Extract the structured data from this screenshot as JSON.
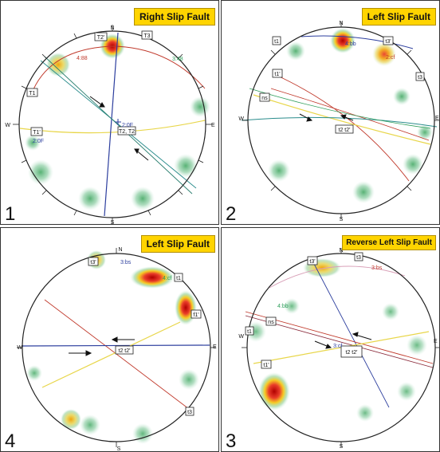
{
  "panels": [
    {
      "number": "1",
      "title": "Right Slip Fault",
      "directions": [
        "N",
        "E",
        "S",
        "W"
      ],
      "labels": [
        {
          "text": "T2'",
          "kind": "box"
        },
        {
          "text": "T3",
          "kind": "box"
        },
        {
          "text": "T1",
          "kind": "box"
        },
        {
          "text": "T1'",
          "kind": "box"
        },
        {
          "text": "T2, T2",
          "kind": "box"
        },
        {
          "text": "4:88",
          "kind": "red"
        },
        {
          "text": "3:48",
          "kind": "green"
        },
        {
          "text": "2:0F",
          "kind": "blue"
        },
        {
          "text": "2:0F",
          "kind": "blue"
        }
      ]
    },
    {
      "number": "2",
      "title": "Left Slip Fault",
      "directions": [
        "N",
        "E",
        "S",
        "W"
      ],
      "labels": [
        {
          "text": "t1",
          "kind": "box"
        },
        {
          "text": "t3'",
          "kind": "box"
        },
        {
          "text": "t1'",
          "kind": "box"
        },
        {
          "text": "t3",
          "kind": "box"
        },
        {
          "text": "ns",
          "kind": "box"
        },
        {
          "text": "t2 t2'",
          "kind": "box"
        },
        {
          "text": "4:bb",
          "kind": "blue"
        },
        {
          "text": "2:cf",
          "kind": "red"
        }
      ]
    },
    {
      "number": "4",
      "title": "Left Slip Fault",
      "directions": [
        "N",
        "E",
        "S",
        "W"
      ],
      "labels": [
        {
          "text": "t3'",
          "kind": "box"
        },
        {
          "text": "t1",
          "kind": "box"
        },
        {
          "text": "f1'",
          "kind": "box"
        },
        {
          "text": "t3",
          "kind": "box"
        },
        {
          "text": "t2 t2'",
          "kind": "box"
        },
        {
          "text": "3:bs",
          "kind": "blue"
        },
        {
          "text": "4:cf",
          "kind": "green"
        }
      ]
    },
    {
      "number": "3",
      "title": "Reverse Left Slip Fault",
      "directions": [
        "N",
        "E",
        "S",
        "W"
      ],
      "labels": [
        {
          "text": "t3'",
          "kind": "box"
        },
        {
          "text": "t3",
          "kind": "box"
        },
        {
          "text": "ns",
          "kind": "box"
        },
        {
          "text": "t1",
          "kind": "box"
        },
        {
          "text": "t1'",
          "kind": "box"
        },
        {
          "text": "t2 t2'",
          "kind": "box"
        },
        {
          "text": "3:bs",
          "kind": "red"
        },
        {
          "text": "4:bb",
          "kind": "green"
        },
        {
          "text": "3:cf",
          "kind": "blue"
        }
      ]
    }
  ],
  "colors": {
    "badge": "#ffd400",
    "red": "#c0392b",
    "green": "#2e9e5b",
    "blue": "#2c3e9e",
    "yellow": "#e8d64a",
    "outline": "#222222"
  }
}
